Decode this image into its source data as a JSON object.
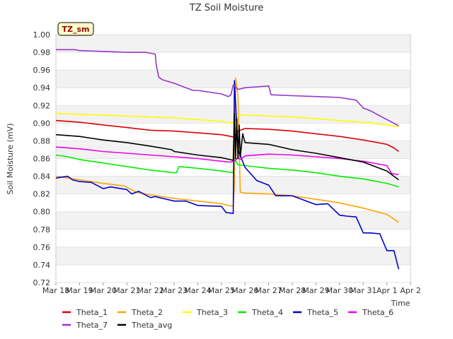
{
  "chart_data": {
    "type": "line",
    "title": "TZ Soil Moisture",
    "xlabel": "Time",
    "ylabel": "Soil Moisture (mV)",
    "badge": "TZ_sm",
    "ylim": [
      0.72,
      1.0
    ],
    "xlim": [
      0,
      15
    ],
    "yticks": [
      "1.00",
      "0.98",
      "0.96",
      "0.94",
      "0.92",
      "0.90",
      "0.88",
      "0.86",
      "0.84",
      "0.82",
      "0.80",
      "0.78",
      "0.76",
      "0.74",
      "0.72"
    ],
    "xtick_labels": [
      "Mar 18",
      "Mar 19",
      "Mar 20",
      "Mar 21",
      "Mar 22",
      "Mar 23",
      "Mar 24",
      "Mar 25",
      "Mar 26",
      "Mar 27",
      "Mar 28",
      "Mar 29",
      "Mar 30",
      "Mar 31",
      "Apr 1",
      "Apr 2"
    ],
    "series": [
      {
        "name": "Theta_1",
        "color": "#dd0000",
        "x": [
          0,
          1,
          2,
          3,
          4,
          5,
          6,
          7,
          7.4,
          7.55,
          7.7,
          8,
          9,
          10,
          11,
          12,
          13,
          14,
          14.3,
          14.5
        ],
        "y": [
          0.903,
          0.901,
          0.898,
          0.895,
          0.892,
          0.891,
          0.889,
          0.887,
          0.885,
          0.884,
          0.891,
          0.894,
          0.893,
          0.891,
          0.888,
          0.885,
          0.881,
          0.876,
          0.872,
          0.868
        ]
      },
      {
        "name": "Theta_2",
        "color": "#ffa500",
        "x": [
          0,
          0.5,
          1,
          2,
          2.9,
          3.4,
          4,
          5,
          6,
          7,
          7.3,
          7.5,
          7.55,
          7.6,
          7.7,
          7.8,
          8,
          9,
          10,
          11,
          12,
          13,
          14,
          14.5
        ],
        "y": [
          0.84,
          0.838,
          0.836,
          0.832,
          0.829,
          0.822,
          0.819,
          0.815,
          0.812,
          0.809,
          0.807,
          0.806,
          0.83,
          0.951,
          0.93,
          0.822,
          0.821,
          0.82,
          0.818,
          0.814,
          0.81,
          0.804,
          0.797,
          0.788
        ]
      },
      {
        "name": "Theta_3",
        "color": "#ffff00",
        "x": [
          0,
          1,
          2,
          3,
          4,
          5,
          6,
          7,
          7.5,
          7.55,
          8,
          9,
          10,
          11,
          12,
          13,
          14,
          14.5
        ],
        "y": [
          0.911,
          0.91,
          0.909,
          0.908,
          0.907,
          0.906,
          0.904,
          0.902,
          0.9,
          0.909,
          0.909,
          0.908,
          0.907,
          0.905,
          0.903,
          0.901,
          0.898,
          0.896
        ]
      },
      {
        "name": "Theta_4",
        "color": "#00ee00",
        "x": [
          0,
          0.5,
          1,
          2,
          3,
          4,
          5,
          5.1,
          5.2,
          6,
          7,
          7.5,
          7.55,
          7.7,
          8,
          9,
          10,
          11,
          12,
          13,
          14,
          14.5
        ],
        "y": [
          0.864,
          0.862,
          0.859,
          0.855,
          0.851,
          0.847,
          0.844,
          0.844,
          0.851,
          0.849,
          0.846,
          0.844,
          0.86,
          0.853,
          0.852,
          0.849,
          0.847,
          0.844,
          0.84,
          0.837,
          0.832,
          0.828
        ]
      },
      {
        "name": "Theta_5",
        "color": "#0000cc",
        "x": [
          0,
          0.5,
          0.7,
          1,
          1.5,
          2,
          2.3,
          3,
          3.2,
          3.5,
          4,
          4.2,
          5,
          5.5,
          6,
          7,
          7.2,
          7.5,
          7.55,
          7.7,
          8,
          8.5,
          9,
          9.3,
          10,
          11,
          11.5,
          12,
          12.3,
          12.7,
          13,
          13.3,
          13.7,
          14,
          14.3,
          14.5
        ],
        "y": [
          0.838,
          0.84,
          0.836,
          0.834,
          0.833,
          0.826,
          0.828,
          0.825,
          0.82,
          0.823,
          0.816,
          0.817,
          0.812,
          0.812,
          0.807,
          0.806,
          0.799,
          0.798,
          0.948,
          0.87,
          0.85,
          0.835,
          0.83,
          0.818,
          0.818,
          0.808,
          0.809,
          0.796,
          0.795,
          0.794,
          0.776,
          0.776,
          0.775,
          0.756,
          0.756,
          0.735
        ]
      },
      {
        "name": "Theta_6",
        "color": "#ee00ee",
        "x": [
          0,
          1,
          2,
          3,
          4,
          5,
          6,
          7,
          7.4,
          7.6,
          7.7,
          7.8,
          8,
          9,
          10,
          11,
          12,
          13,
          14,
          14.2,
          14.5
        ],
        "y": [
          0.873,
          0.871,
          0.868,
          0.866,
          0.864,
          0.862,
          0.86,
          0.857,
          0.856,
          0.858,
          0.861,
          0.859,
          0.863,
          0.865,
          0.864,
          0.862,
          0.86,
          0.857,
          0.852,
          0.843,
          0.842
        ]
      },
      {
        "name": "Theta_7",
        "color": "#9933cc",
        "x": [
          0,
          0.8,
          1,
          2,
          3,
          3.8,
          4.2,
          4.25,
          4.35,
          4.5,
          5,
          5.5,
          5.8,
          6,
          7,
          7.3,
          7.4,
          7.5,
          7.55,
          7.7,
          8,
          8.5,
          9,
          9.1,
          10,
          11,
          12,
          12.7,
          13,
          13.3,
          14,
          14.5
        ],
        "y": [
          0.983,
          0.983,
          0.982,
          0.981,
          0.98,
          0.98,
          0.978,
          0.965,
          0.952,
          0.949,
          0.945,
          0.94,
          0.937,
          0.937,
          0.933,
          0.93,
          0.932,
          0.943,
          0.942,
          0.938,
          0.94,
          0.941,
          0.942,
          0.932,
          0.931,
          0.93,
          0.929,
          0.926,
          0.917,
          0.914,
          0.904,
          0.897
        ]
      },
      {
        "name": "Theta_avg",
        "color": "#000000",
        "x": [
          0,
          1,
          2,
          3,
          4,
          4.9,
          5,
          6,
          7,
          7.5,
          7.55,
          7.6,
          7.65,
          7.7,
          7.75,
          7.8,
          7.9,
          8,
          9,
          10,
          11,
          12,
          13,
          14,
          14.3,
          14.5
        ],
        "y": [
          0.887,
          0.885,
          0.881,
          0.878,
          0.874,
          0.87,
          0.868,
          0.864,
          0.861,
          0.858,
          0.911,
          0.86,
          0.905,
          0.86,
          0.898,
          0.862,
          0.888,
          0.878,
          0.876,
          0.87,
          0.866,
          0.861,
          0.856,
          0.846,
          0.84,
          0.836
        ]
      }
    ]
  }
}
